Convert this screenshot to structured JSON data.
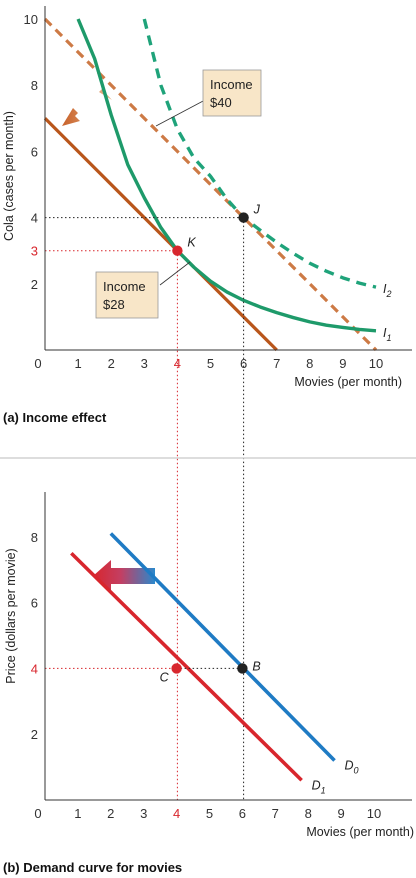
{
  "chart_data": [
    {
      "type": "line",
      "caption": "(a) Income effect",
      "xlabel": "Movies (per month)",
      "ylabel": "Cola (cases per month)",
      "xlim": [
        0,
        10.5
      ],
      "ylim": [
        0,
        10.3
      ],
      "x_ticks": [
        1,
        2,
        3,
        4,
        5,
        6,
        7,
        8,
        9,
        10
      ],
      "y_ticks": [
        2,
        4,
        6,
        8,
        10
      ],
      "origin_label": "0",
      "highlight_x_tick": "4",
      "highlight_y_tick": "3",
      "budget_lines": [
        {
          "label": "Income $40",
          "box_lines": [
            "Income",
            "$40"
          ],
          "x": [
            0,
            10
          ],
          "y": [
            10,
            0
          ],
          "style": "dashed",
          "color": "#cd7a45"
        },
        {
          "label": "Income $28",
          "box_lines": [
            "Income",
            "$28"
          ],
          "x": [
            0,
            7
          ],
          "y": [
            7,
            0
          ],
          "style": "solid",
          "color": "#b9561b"
        }
      ],
      "indifference_curves": [
        {
          "label": "I2",
          "label_main": "I",
          "label_sub": "2",
          "style": "dashed",
          "color": "#1fa37a",
          "x": [
            3,
            3.5,
            4,
            4.5,
            5,
            5.5,
            6,
            6.5,
            7,
            7.5,
            8,
            8.5,
            9,
            9.5,
            10
          ],
          "y": [
            10,
            8.0,
            6.67,
            5.8,
            5.25,
            4.55,
            4.0,
            3.62,
            3.25,
            2.92,
            2.62,
            2.38,
            2.18,
            2.02,
            1.9
          ]
        },
        {
          "label": "I1",
          "label_main": "I",
          "label_sub": "1",
          "style": "solid",
          "color": "#1e9a6a",
          "x": [
            1,
            1.5,
            2,
            2.5,
            3,
            3.5,
            4,
            4.5,
            5,
            5.5,
            6,
            6.5,
            7,
            7.5,
            8,
            8.5,
            9,
            9.5,
            10
          ],
          "y": [
            10,
            8.8,
            7.1,
            5.6,
            4.6,
            3.7,
            3.0,
            2.5,
            2.08,
            1.75,
            1.5,
            1.3,
            1.13,
            0.98,
            0.85,
            0.75,
            0.68,
            0.62,
            0.58
          ]
        }
      ],
      "points": [
        {
          "label": "J",
          "x": 6,
          "y": 4,
          "color": "#222222"
        },
        {
          "label": "K",
          "x": 4,
          "y": 3,
          "color": "#d8262d"
        }
      ]
    },
    {
      "type": "line",
      "caption": "(b) Demand curve for movies",
      "xlabel": "Movies (per month)",
      "ylabel": "Price (dollars per movie)",
      "xlim": [
        0,
        10.5
      ],
      "ylim": [
        0,
        9
      ],
      "x_ticks": [
        1,
        2,
        3,
        4,
        5,
        6,
        7,
        8,
        9,
        10
      ],
      "y_ticks": [
        2,
        4,
        6,
        8
      ],
      "origin_label": "0",
      "highlight_x_tick": "4",
      "highlight_y_tick": "4",
      "series": [
        {
          "name": "D0",
          "label_main": "D",
          "label_sub": "0",
          "color": "#1f7bc4",
          "x": [
            2,
            8.8
          ],
          "y": [
            8.1,
            1.2
          ]
        },
        {
          "name": "D1",
          "label_main": "D",
          "label_sub": "1",
          "color": "#d8262d",
          "x": [
            0.8,
            7.8
          ],
          "y": [
            7.5,
            0.6
          ]
        }
      ],
      "points": [
        {
          "label": "B",
          "x": 6,
          "y": 4,
          "color": "#222222"
        },
        {
          "label": "C",
          "x": 4,
          "y": 4,
          "color": "#d8262d"
        }
      ]
    }
  ]
}
